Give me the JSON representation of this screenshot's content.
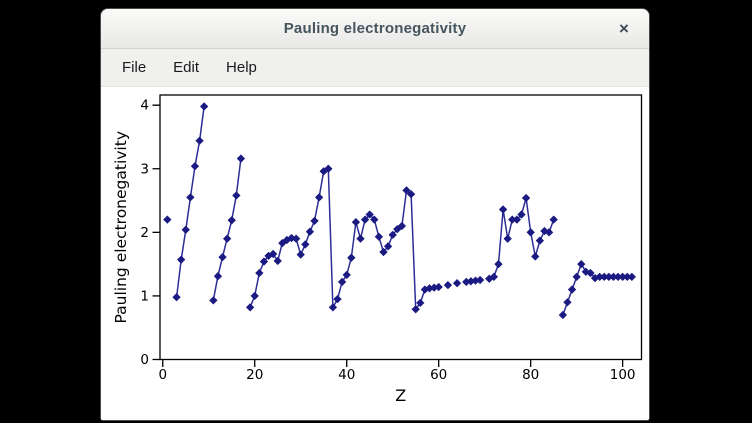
{
  "window": {
    "title": "Pauling electronegativity",
    "close_glyph": "×"
  },
  "menu": {
    "items": [
      {
        "label": "File"
      },
      {
        "label": "Edit"
      },
      {
        "label": "Help"
      }
    ]
  },
  "chart_data": {
    "type": "line",
    "title": "",
    "xlabel": "Z",
    "ylabel": "Pauling electronegativity",
    "xlim": [
      -0.6,
      104.1
    ],
    "ylim": [
      0,
      4.16
    ],
    "xticks": [
      0,
      20,
      40,
      60,
      80,
      100
    ],
    "yticks": [
      0,
      1,
      2,
      3,
      4
    ],
    "grid": false,
    "legend": "none",
    "marker": "diamond",
    "line_color": "#2d2d96",
    "marker_color": "#1a1a82",
    "note": "Pauling electronegativity vs atomic number Z; gaps where no value exists (He, Ne, Ar, Rn, Pm, Eu, Tb, Yb); line breaks only across missing Z",
    "series": [
      {
        "name": "Pauling electronegativity",
        "points": [
          [
            1,
            2.2
          ],
          [
            3,
            0.98
          ],
          [
            4,
            1.57
          ],
          [
            5,
            2.04
          ],
          [
            6,
            2.55
          ],
          [
            7,
            3.04
          ],
          [
            8,
            3.44
          ],
          [
            9,
            3.98
          ],
          [
            11,
            0.93
          ],
          [
            12,
            1.31
          ],
          [
            13,
            1.61
          ],
          [
            14,
            1.9
          ],
          [
            15,
            2.19
          ],
          [
            16,
            2.58
          ],
          [
            17,
            3.16
          ],
          [
            19,
            0.82
          ],
          [
            20,
            1.0
          ],
          [
            21,
            1.36
          ],
          [
            22,
            1.54
          ],
          [
            23,
            1.63
          ],
          [
            24,
            1.66
          ],
          [
            25,
            1.55
          ],
          [
            26,
            1.83
          ],
          [
            27,
            1.88
          ],
          [
            28,
            1.91
          ],
          [
            29,
            1.9
          ],
          [
            30,
            1.65
          ],
          [
            31,
            1.81
          ],
          [
            32,
            2.01
          ],
          [
            33,
            2.18
          ],
          [
            34,
            2.55
          ],
          [
            35,
            2.96
          ],
          [
            36,
            3.0
          ],
          [
            37,
            0.82
          ],
          [
            38,
            0.95
          ],
          [
            39,
            1.22
          ],
          [
            40,
            1.33
          ],
          [
            41,
            1.6
          ],
          [
            42,
            2.16
          ],
          [
            43,
            1.9
          ],
          [
            44,
            2.2
          ],
          [
            45,
            2.28
          ],
          [
            46,
            2.2
          ],
          [
            47,
            1.93
          ],
          [
            48,
            1.69
          ],
          [
            49,
            1.78
          ],
          [
            50,
            1.96
          ],
          [
            51,
            2.05
          ],
          [
            52,
            2.1
          ],
          [
            53,
            2.66
          ],
          [
            54,
            2.6
          ],
          [
            55,
            0.79
          ],
          [
            56,
            0.89
          ],
          [
            57,
            1.1
          ],
          [
            58,
            1.12
          ],
          [
            59,
            1.13
          ],
          [
            60,
            1.14
          ],
          [
            62,
            1.17
          ],
          [
            64,
            1.2
          ],
          [
            66,
            1.22
          ],
          [
            67,
            1.23
          ],
          [
            68,
            1.24
          ],
          [
            69,
            1.25
          ],
          [
            71,
            1.27
          ],
          [
            72,
            1.3
          ],
          [
            73,
            1.5
          ],
          [
            74,
            2.36
          ],
          [
            75,
            1.9
          ],
          [
            76,
            2.2
          ],
          [
            77,
            2.2
          ],
          [
            78,
            2.28
          ],
          [
            79,
            2.54
          ],
          [
            80,
            2.0
          ],
          [
            81,
            1.62
          ],
          [
            82,
            1.87
          ],
          [
            83,
            2.02
          ],
          [
            84,
            2.0
          ],
          [
            85,
            2.2
          ],
          [
            87,
            0.7
          ],
          [
            88,
            0.9
          ],
          [
            89,
            1.1
          ],
          [
            90,
            1.3
          ],
          [
            91,
            1.5
          ],
          [
            92,
            1.38
          ],
          [
            93,
            1.36
          ],
          [
            94,
            1.28
          ],
          [
            95,
            1.3
          ],
          [
            96,
            1.3
          ],
          [
            97,
            1.3
          ],
          [
            98,
            1.3
          ],
          [
            99,
            1.3
          ],
          [
            100,
            1.3
          ],
          [
            101,
            1.3
          ],
          [
            102,
            1.3
          ]
        ]
      }
    ]
  }
}
